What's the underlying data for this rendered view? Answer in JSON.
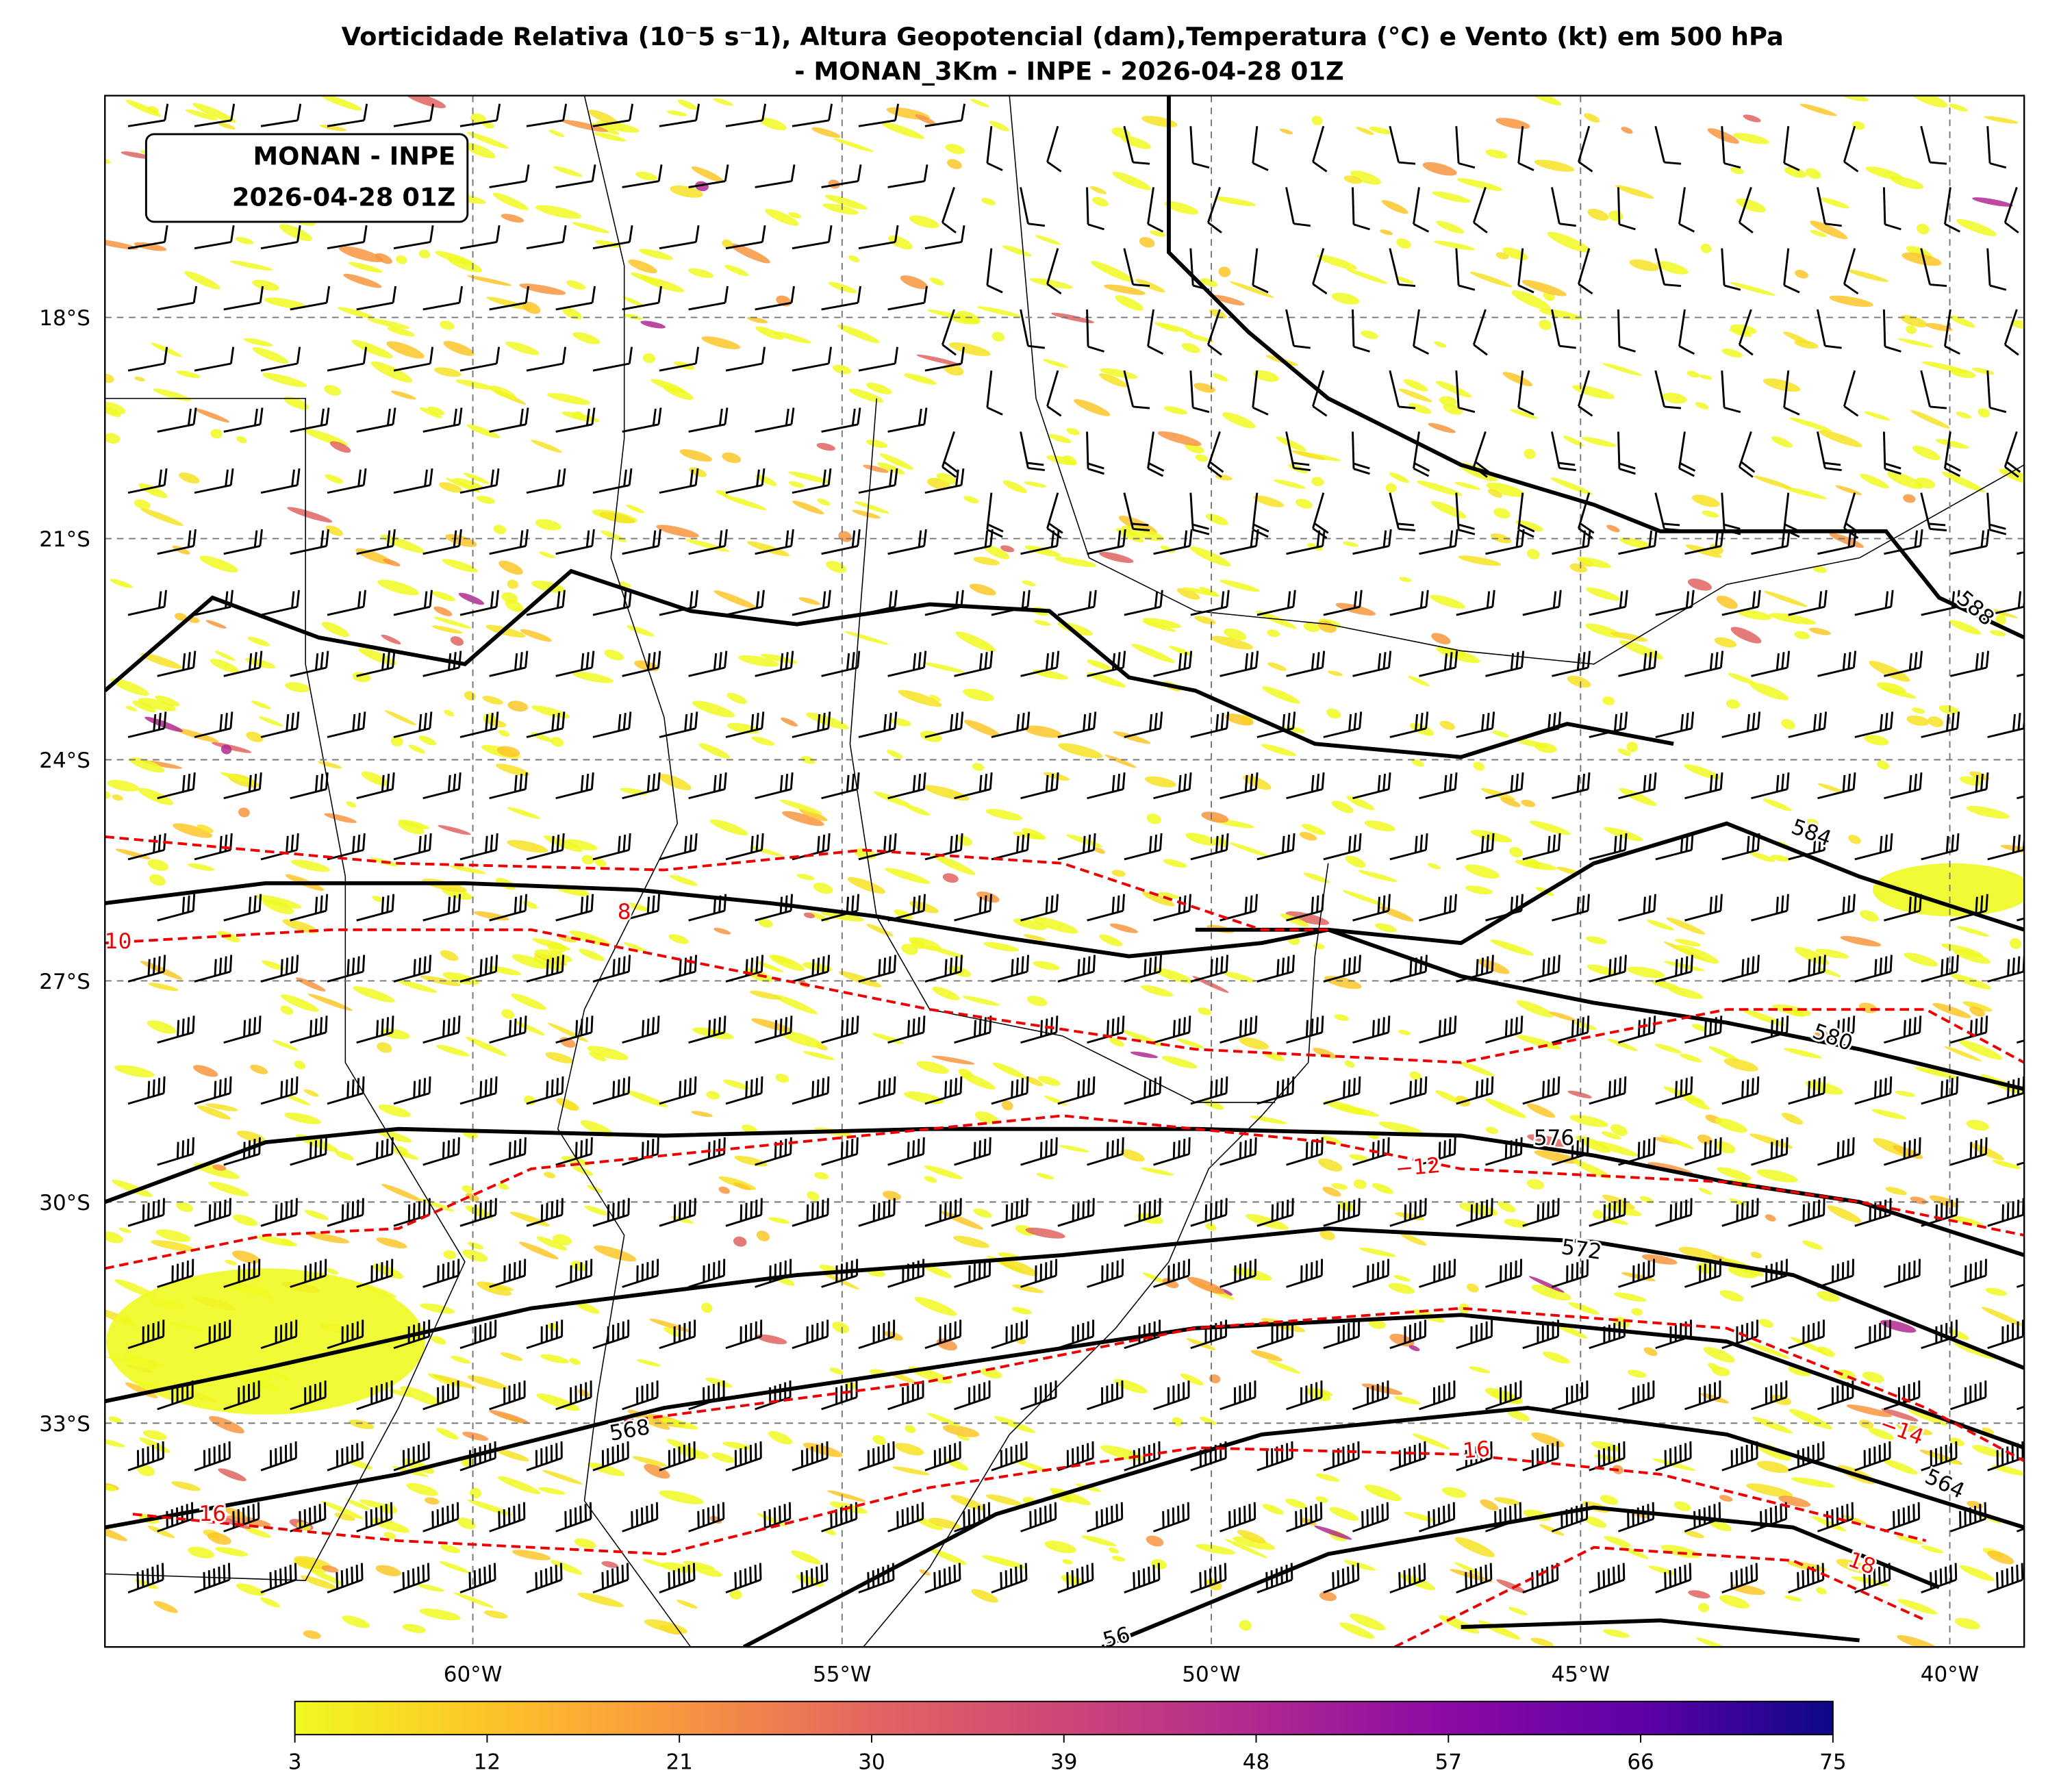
{
  "title": [
    "Vorticidade Relativa (10⁻5 s⁻1), Altura Geopotencial (dam),Temperatura (°C) e Vento (kt) em 500 hPa",
    "- MONAN_3Km - INPE - 2026-04-28 01Z"
  ],
  "map": {
    "label_box": [
      "MONAN - INPE",
      "2026-04-28 01Z"
    ],
    "lat_ticks": [
      {
        "value": -18,
        "label": "18°S"
      },
      {
        "value": -21,
        "label": "21°S"
      },
      {
        "value": -24,
        "label": "24°S"
      },
      {
        "value": -27,
        "label": "27°S"
      },
      {
        "value": -30,
        "label": "30°S"
      },
      {
        "value": -33,
        "label": "33°S"
      }
    ],
    "lon_ticks": [
      {
        "value": -60,
        "label": "60°W"
      },
      {
        "value": -55,
        "label": "55°W"
      },
      {
        "value": -50,
        "label": "50°W"
      },
      {
        "value": -45,
        "label": "45°W"
      },
      {
        "value": -40,
        "label": "40°W"
      }
    ],
    "height_contour_labels": [
      "588",
      "584",
      "580",
      "576",
      "572",
      "568",
      "564",
      "56"
    ],
    "temperature_contour_labels": [
      "8",
      "10",
      "−12",
      "−14",
      "16",
      "16",
      "18"
    ]
  },
  "colorbar": {
    "range": [
      3,
      75
    ],
    "ticks": [
      3,
      12,
      21,
      30,
      39,
      48,
      57,
      66,
      75
    ]
  }
}
